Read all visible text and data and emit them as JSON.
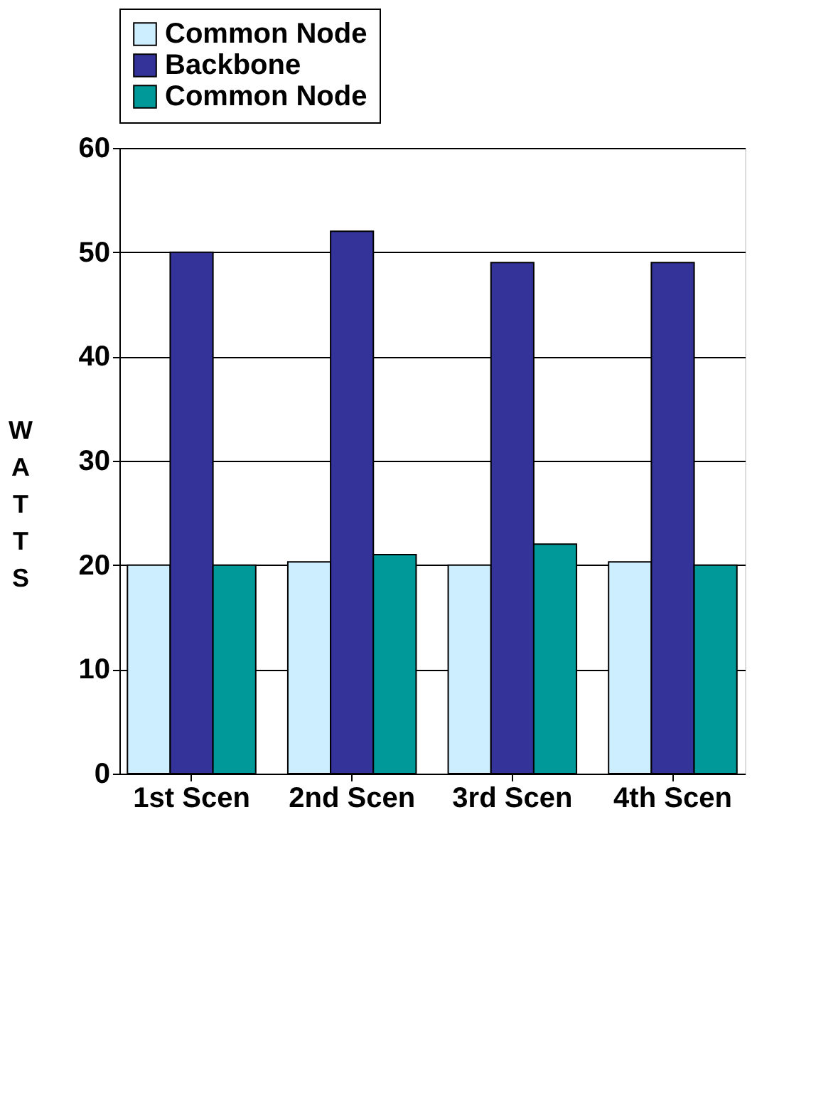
{
  "chart_data": {
    "type": "bar",
    "ylabel": "WATTS",
    "categories": [
      "1st Scen",
      "2nd Scen",
      "3rd Scen",
      "4th Scen"
    ],
    "series": [
      {
        "name": "Common Node",
        "color": "#cceeff",
        "values": [
          20,
          20.3,
          20,
          20.3
        ]
      },
      {
        "name": "Backbone",
        "color": "#333399",
        "values": [
          50,
          52,
          49,
          49
        ]
      },
      {
        "name": "Common Node",
        "color": "#009999",
        "values": [
          20,
          21,
          22,
          20
        ]
      }
    ],
    "ylim": [
      0,
      60
    ],
    "yticks": [
      0,
      10,
      20,
      30,
      40,
      50,
      60
    ],
    "grid": "y",
    "legend": "top"
  }
}
